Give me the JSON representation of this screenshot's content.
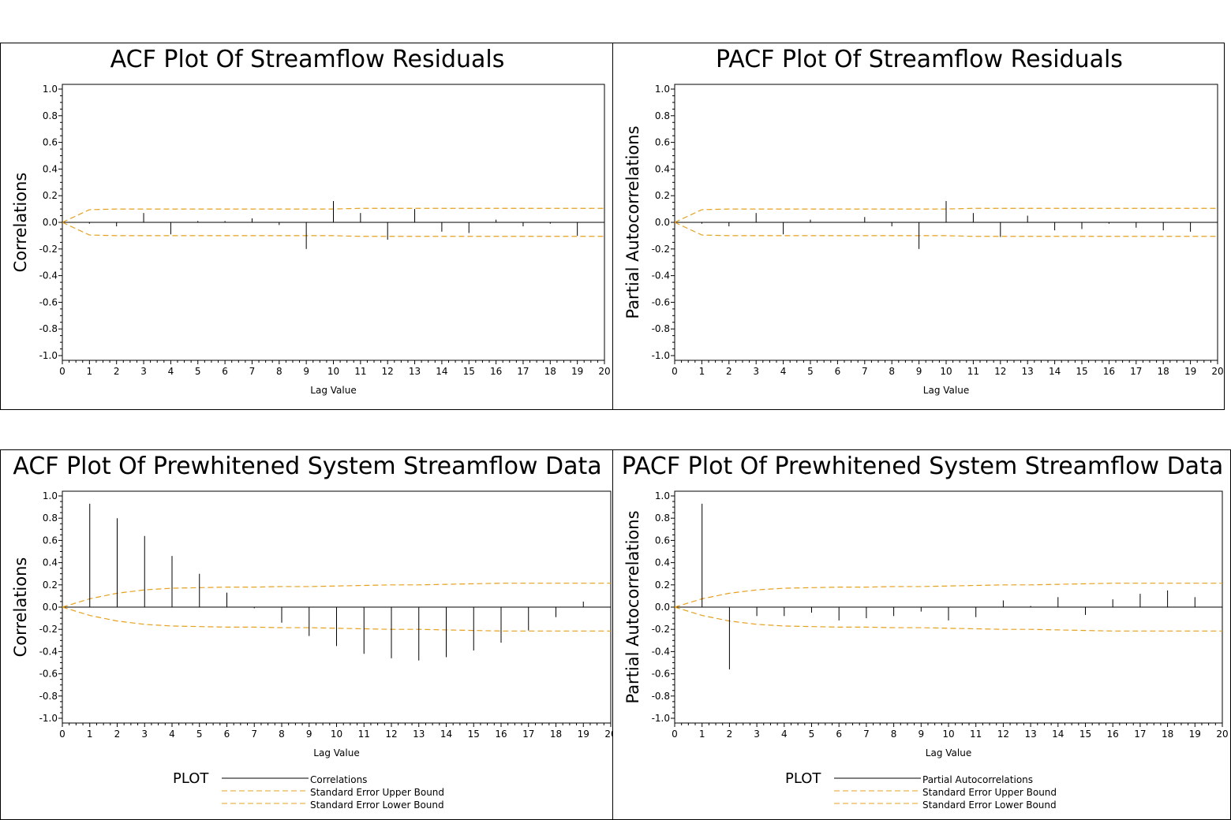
{
  "colors": {
    "correlation": "#000000",
    "bounds": "#E6A11E",
    "frame": "#000000"
  },
  "legend": {
    "key_label": "PLOT",
    "upper_bound": "Standard Error Upper Bound",
    "lower_bound": "Standard Error Lower Bound"
  },
  "chart_data": [
    {
      "type": "bar",
      "title": "ACF Plot Of Streamflow Residuals",
      "xlabel": "Lag Value",
      "ylabel": "Correlations",
      "series_label": "Correlations",
      "ylim": [
        -1.0,
        1.0
      ],
      "xlim": [
        0,
        20
      ],
      "y_ticks": [
        "1.0",
        "0.8",
        "0.6",
        "0.4",
        "0.2",
        "0.0",
        "-0.2",
        "-0.4",
        "-0.6",
        "-0.8",
        "-1.0"
      ],
      "x_ticks": [
        "0",
        "1",
        "2",
        "3",
        "4",
        "5",
        "6",
        "7",
        "8",
        "9",
        "10",
        "11",
        "12",
        "13",
        "14",
        "15",
        "16",
        "17",
        "18",
        "19",
        "20"
      ],
      "x": [
        0,
        1,
        2,
        3,
        4,
        5,
        6,
        7,
        8,
        9,
        10,
        11,
        12,
        13,
        14,
        15,
        16,
        17,
        18,
        19,
        20
      ],
      "values": [
        1.0,
        -0.01,
        -0.03,
        0.07,
        -0.09,
        0.01,
        0.01,
        0.03,
        -0.02,
        -0.2,
        0.16,
        0.07,
        -0.13,
        0.1,
        -0.07,
        -0.08,
        0.02,
        -0.03,
        -0.01,
        -0.1,
        0.02
      ],
      "upper_bound": [
        0.0,
        0.095,
        0.1,
        0.1,
        0.1,
        0.1,
        0.1,
        0.1,
        0.1,
        0.1,
        0.1,
        0.105,
        0.105,
        0.105,
        0.105,
        0.105,
        0.105,
        0.105,
        0.105,
        0.105,
        0.105
      ],
      "lower_bound": [
        0.0,
        -0.095,
        -0.1,
        -0.1,
        -0.1,
        -0.1,
        -0.1,
        -0.1,
        -0.1,
        -0.1,
        -0.1,
        -0.105,
        -0.105,
        -0.105,
        -0.105,
        -0.105,
        -0.105,
        -0.105,
        -0.105,
        -0.105,
        -0.105
      ],
      "grid": false,
      "legend_position": "bottom"
    },
    {
      "type": "bar",
      "title": "PACF Plot Of Streamflow Residuals",
      "xlabel": "Lag Value",
      "ylabel": "Partial Autocorrelations",
      "series_label": "Partial Autocorrelations",
      "ylim": [
        -1.0,
        1.0
      ],
      "xlim": [
        0,
        20
      ],
      "y_ticks": [
        "1.0",
        "0.8",
        "0.6",
        "0.4",
        "0.2",
        "0.0",
        "-0.2",
        "-0.4",
        "-0.6",
        "-0.8",
        "-1.0"
      ],
      "x_ticks": [
        "0",
        "1",
        "2",
        "3",
        "4",
        "5",
        "6",
        "7",
        "8",
        "9",
        "10",
        "11",
        "12",
        "13",
        "14",
        "15",
        "16",
        "17",
        "18",
        "19",
        "20"
      ],
      "x": [
        1,
        2,
        3,
        4,
        5,
        6,
        7,
        8,
        9,
        10,
        11,
        12,
        13,
        14,
        15,
        16,
        17,
        18,
        19,
        20
      ],
      "values": [
        -0.01,
        -0.03,
        0.07,
        -0.09,
        0.02,
        0.0,
        0.04,
        -0.03,
        -0.2,
        0.16,
        0.07,
        -0.11,
        0.05,
        -0.06,
        -0.05,
        -0.01,
        -0.04,
        -0.06,
        -0.07,
        0.1
      ],
      "upper_bound": [
        0.0,
        0.095,
        0.1,
        0.1,
        0.1,
        0.1,
        0.1,
        0.1,
        0.1,
        0.1,
        0.1,
        0.105,
        0.105,
        0.105,
        0.105,
        0.105,
        0.105,
        0.105,
        0.105,
        0.105,
        0.105
      ],
      "lower_bound": [
        0.0,
        -0.095,
        -0.1,
        -0.1,
        -0.1,
        -0.1,
        -0.1,
        -0.1,
        -0.1,
        -0.1,
        -0.1,
        -0.105,
        -0.105,
        -0.105,
        -0.105,
        -0.105,
        -0.105,
        -0.105,
        -0.105,
        -0.105,
        -0.105
      ],
      "grid": false,
      "legend_position": "bottom"
    },
    {
      "type": "bar",
      "title": "ACF Plot Of Prewhitened System Streamflow Data",
      "xlabel": "Lag Value",
      "ylabel": "Correlations",
      "series_label": "Correlations",
      "ylim": [
        -1.0,
        1.0
      ],
      "xlim": [
        0,
        20
      ],
      "y_ticks": [
        "1.0",
        "0.8",
        "0.6",
        "0.4",
        "0.2",
        "0.0",
        "-0.2",
        "-0.4",
        "-0.6",
        "-0.8",
        "-1.0"
      ],
      "x_ticks": [
        "0",
        "1",
        "2",
        "3",
        "4",
        "5",
        "6",
        "7",
        "8",
        "9",
        "10",
        "11",
        "12",
        "13",
        "14",
        "15",
        "16",
        "17",
        "18",
        "19",
        "20"
      ],
      "x": [
        1,
        2,
        3,
        4,
        5,
        6,
        7,
        8,
        9,
        10,
        11,
        12,
        13,
        14,
        15,
        16,
        17,
        18,
        19,
        20
      ],
      "values": [
        0.93,
        0.8,
        0.64,
        0.46,
        0.3,
        0.13,
        -0.01,
        -0.14,
        -0.26,
        -0.35,
        -0.42,
        -0.46,
        -0.48,
        -0.45,
        -0.39,
        -0.32,
        -0.21,
        -0.09,
        0.05,
        0.2
      ],
      "upper_bound": [
        0.0,
        0.075,
        0.125,
        0.155,
        0.17,
        0.175,
        0.18,
        0.18,
        0.185,
        0.185,
        0.19,
        0.195,
        0.2,
        0.2,
        0.205,
        0.21,
        0.215,
        0.215,
        0.215,
        0.215,
        0.215
      ],
      "lower_bound": [
        0.0,
        -0.075,
        -0.125,
        -0.155,
        -0.17,
        -0.175,
        -0.18,
        -0.18,
        -0.185,
        -0.185,
        -0.19,
        -0.195,
        -0.2,
        -0.2,
        -0.205,
        -0.21,
        -0.215,
        -0.215,
        -0.215,
        -0.215,
        -0.215
      ],
      "grid": false,
      "legend_position": "bottom"
    },
    {
      "type": "bar",
      "title": "PACF Plot Of Prewhitened System Streamflow Data",
      "xlabel": "Lag Value",
      "ylabel": "Partial Autocorrelations",
      "series_label": "Partial Autocorrelations",
      "ylim": [
        -1.0,
        1.0
      ],
      "xlim": [
        0,
        20
      ],
      "y_ticks": [
        "1.0",
        "0.8",
        "0.6",
        "0.4",
        "0.2",
        "0.0",
        "-0.2",
        "-0.4",
        "-0.6",
        "-0.8",
        "-1.0"
      ],
      "x_ticks": [
        "0",
        "1",
        "2",
        "3",
        "4",
        "5",
        "6",
        "7",
        "8",
        "9",
        "10",
        "11",
        "12",
        "13",
        "14",
        "15",
        "16",
        "17",
        "18",
        "19",
        "20"
      ],
      "x": [
        1,
        2,
        3,
        4,
        5,
        6,
        7,
        8,
        9,
        10,
        11,
        12,
        13,
        14,
        15,
        16,
        17,
        18,
        19,
        20
      ],
      "values": [
        0.93,
        -0.56,
        -0.08,
        -0.08,
        -0.05,
        -0.12,
        -0.1,
        -0.08,
        -0.04,
        -0.12,
        -0.09,
        0.06,
        0.01,
        0.09,
        -0.07,
        0.07,
        0.12,
        0.15,
        0.09,
        0.12
      ],
      "upper_bound": [
        0.0,
        0.075,
        0.125,
        0.155,
        0.17,
        0.175,
        0.18,
        0.18,
        0.185,
        0.185,
        0.19,
        0.195,
        0.2,
        0.2,
        0.205,
        0.21,
        0.215,
        0.215,
        0.215,
        0.215,
        0.215
      ],
      "lower_bound": [
        0.0,
        -0.075,
        -0.125,
        -0.155,
        -0.17,
        -0.175,
        -0.18,
        -0.18,
        -0.185,
        -0.185,
        -0.19,
        -0.195,
        -0.2,
        -0.2,
        -0.205,
        -0.21,
        -0.215,
        -0.215,
        -0.215,
        -0.215,
        -0.215
      ],
      "grid": false,
      "legend_position": "bottom"
    }
  ]
}
